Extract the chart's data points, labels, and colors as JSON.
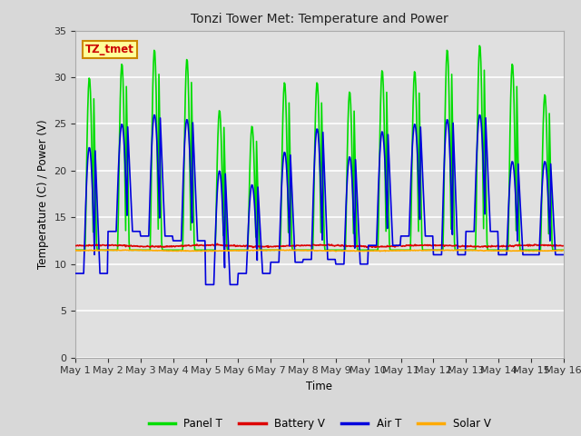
{
  "title": "Tonzi Tower Met: Temperature and Power",
  "xlabel": "Time",
  "ylabel": "Temperature (C) / Power (V)",
  "ylim": [
    0,
    35
  ],
  "yticks": [
    0,
    5,
    10,
    15,
    20,
    25,
    30,
    35
  ],
  "fig_bg_color": "#d8d8d8",
  "plot_bg_color": "#e0e0e0",
  "grid_color": "#ffffff",
  "colors": {
    "panel_t": "#00dd00",
    "battery_v": "#dd0000",
    "air_t": "#0000dd",
    "solar_v": "#ffaa00"
  },
  "legend_labels": [
    "Panel T",
    "Battery V",
    "Air T",
    "Solar V"
  ],
  "annotation_text": "TZ_tmet",
  "annotation_bg": "#ffff99",
  "annotation_border": "#cc8800",
  "annotation_text_color": "#cc0000",
  "panel_peaks": [
    30,
    31.5,
    33,
    32,
    26.5,
    24.8,
    29.5,
    29.5,
    28.5,
    30.8,
    30.7,
    33,
    33.5,
    31.5,
    28.2
  ],
  "air_peaks": [
    22.5,
    25,
    26,
    25.5,
    20,
    18.5,
    22,
    24.5,
    21.5,
    24.2,
    25,
    25.5,
    26,
    21,
    21
  ],
  "air_troughs": [
    9.0,
    13.5,
    13,
    12.5,
    7.8,
    9.0,
    10.2,
    10.5,
    10.0,
    12.0,
    13,
    11,
    13.5,
    11,
    11
  ]
}
